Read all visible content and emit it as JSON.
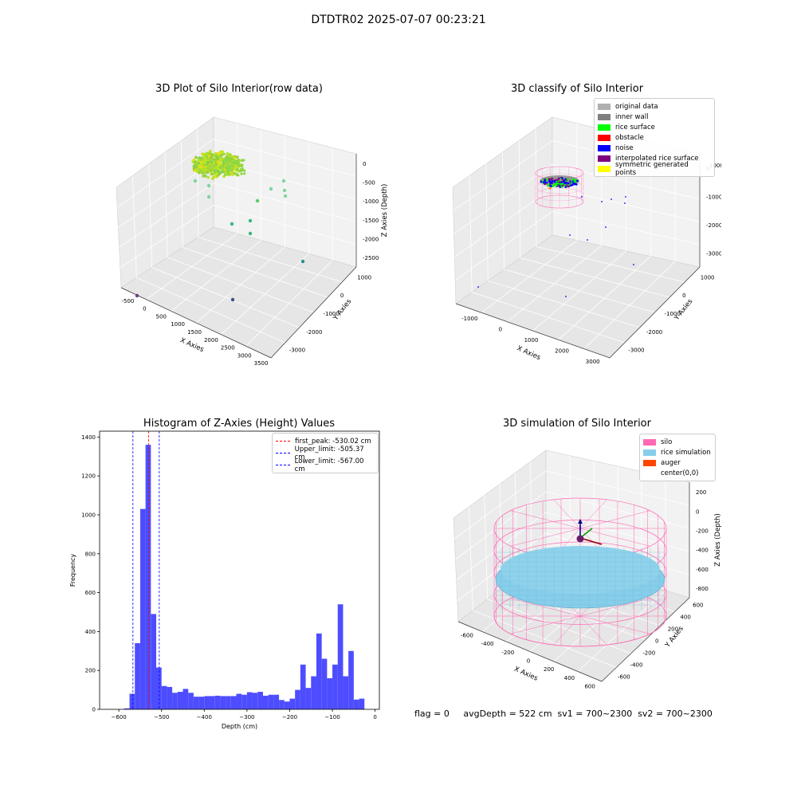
{
  "suptitle": "DTDTR02 2025-07-07 00:23:21",
  "footer": "flag = 0     avgDepth = 522 cm  sv1 = 700~2300  sv2 = 700~2300",
  "panels": {
    "raw": {
      "title": "3D Plot of Silo Interior(row data)",
      "xlabel": "X Axies",
      "ylabel": "Y Axies",
      "zlabel": "Z Axies (Depth)",
      "xticks": [
        "-500",
        "0",
        "500",
        "1000",
        "1500",
        "2000",
        "2500",
        "3000",
        "3500"
      ],
      "yticks": [
        "1000",
        "0",
        "-1000",
        "-2000",
        "-3000"
      ],
      "zticks": [
        "0",
        "-500",
        "-1000",
        "-1500",
        "-2000",
        "-2500"
      ]
    },
    "classify": {
      "title": "3D classify of Silo Interior",
      "xlabel": "X Axies",
      "ylabel": "Y Axies",
      "zlabel": "Z Axies (Depth)",
      "xticks": [
        "-1000",
        "0",
        "1000",
        "2000",
        "3000"
      ],
      "yticks": [
        "1000",
        "0",
        "-1000",
        "-2000",
        "-3000"
      ],
      "zticks": [
        "0",
        "-1000",
        "-2000",
        "-3000"
      ],
      "zticks_hidden": [
        "1000"
      ],
      "legend": [
        {
          "label": "original data",
          "color": "#b0b0b0"
        },
        {
          "label": "inner wall",
          "color": "#808080"
        },
        {
          "label": "rice surface",
          "color": "#00ff00"
        },
        {
          "label": "obstacle",
          "color": "#ff0000"
        },
        {
          "label": "noise",
          "color": "#0000ff"
        },
        {
          "label": "interpolated rice surface",
          "color": "#800080"
        },
        {
          "label": "symmetric generated points",
          "color": "#ffff00"
        }
      ]
    },
    "histogram": {
      "title": "Histogram of Z-Axies (Height) Values",
      "xlabel": "Depth (cm)",
      "ylabel": "Frequency",
      "legend": [
        {
          "label": "first_peak: -530.02 cm",
          "color": "#ff0000"
        },
        {
          "label": "Upper_limit: -505.37 cm",
          "color": "#0000ff"
        },
        {
          "label": "Lower_limit: -567.00 cm",
          "color": "#0000ff"
        }
      ]
    },
    "simulation": {
      "title": "3D simulation of Silo Interior",
      "xlabel": "X Axies",
      "ylabel": "Y Axies",
      "zlabel": "Z Axies (Depth)",
      "xticks": [
        "-600",
        "-400",
        "-200",
        "0",
        "200",
        "400",
        "600"
      ],
      "yticks": [
        "600",
        "400",
        "200",
        "0",
        "-200",
        "-400",
        "-600"
      ],
      "zticks": [
        "200",
        "0",
        "-200",
        "-400",
        "-600",
        "-800"
      ],
      "legend": [
        {
          "label": "silo",
          "color": "#ff69b4"
        },
        {
          "label": "rice simulation",
          "color": "#87ceeb"
        },
        {
          "label": "auger",
          "color": "#ff4500"
        },
        {
          "label": "center(0,0)",
          "color": "#ffffff"
        }
      ]
    }
  },
  "chart_data": [
    {
      "type": "scatter",
      "title": "3D Plot of Silo Interior(row data)",
      "xlabel": "X Axies",
      "ylabel": "Y Axies",
      "zlabel": "Z Axies (Depth)",
      "xlim": [
        -700,
        3500
      ],
      "ylim": [
        -3300,
        1200
      ],
      "zlim": [
        -2800,
        100
      ],
      "grid": true
    },
    {
      "type": "scatter",
      "title": "3D classify of Silo Interior",
      "xlabel": "X Axies",
      "ylabel": "Y Axies",
      "zlabel": "Z Axies (Depth)",
      "xlim": [
        -1100,
        3500
      ],
      "ylim": [
        -3300,
        1200
      ],
      "zlim": [
        -3300,
        1000
      ],
      "legend": [
        "original data",
        "inner wall",
        "rice surface",
        "obstacle",
        "noise",
        "interpolated rice surface",
        "symmetric generated points"
      ],
      "legend_position": "top-right",
      "grid": true
    },
    {
      "type": "bar",
      "title": "Histogram of Z-Axies (Height) Values",
      "xlabel": "Depth (cm)",
      "ylabel": "Frequency",
      "xlim": [
        -645,
        10
      ],
      "ylim": [
        0,
        1430
      ],
      "bin_width": 12.5,
      "bin_start": -587.5,
      "values": [
        5,
        80,
        340,
        1030,
        1360,
        490,
        215,
        120,
        115,
        85,
        90,
        105,
        85,
        65,
        65,
        68,
        68,
        70,
        68,
        68,
        68,
        80,
        75,
        88,
        85,
        90,
        70,
        75,
        75,
        48,
        40,
        55,
        100,
        230,
        110,
        170,
        390,
        260,
        160,
        230,
        540,
        170,
        300,
        50,
        55
      ],
      "xticks": [
        -600,
        -500,
        -400,
        -300,
        -200,
        -100,
        0
      ],
      "yticks": [
        0,
        200,
        400,
        600,
        800,
        1000,
        1200,
        1400
      ],
      "vlines": [
        {
          "x": -530.02,
          "label": "first_peak: -530.02 cm",
          "color": "#ff0000"
        },
        {
          "x": -505.37,
          "label": "Upper_limit: -505.37 cm",
          "color": "#0000ff"
        },
        {
          "x": -567.0,
          "label": "Lower_limit: -567.00 cm",
          "color": "#0000ff"
        }
      ],
      "legend_position": "top-right",
      "bar_color": "#4d4dff"
    },
    {
      "type": "scatter",
      "title": "3D simulation of Silo Interior",
      "xlabel": "X Axies",
      "ylabel": "Y Axies",
      "zlabel": "Z Axies (Depth)",
      "xlim": [
        -700,
        700
      ],
      "ylim": [
        -700,
        700
      ],
      "zlim": [
        -900,
        300
      ],
      "legend": [
        "silo",
        "rice simulation",
        "auger",
        "center(0,0)"
      ],
      "legend_position": "top-right",
      "grid": true
    }
  ]
}
